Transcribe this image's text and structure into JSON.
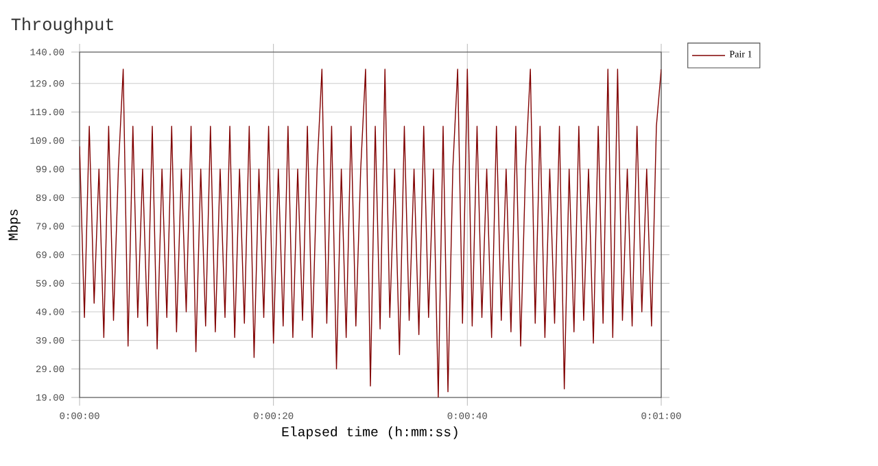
{
  "chart_data": {
    "type": "line",
    "title": "Throughput",
    "xlabel": "Elapsed time (h:mm:ss)",
    "ylabel": "Mbps",
    "xlim": [
      0,
      60
    ],
    "ylim": [
      19,
      140
    ],
    "xticks": [
      {
        "value": 0,
        "label": "0:00:00"
      },
      {
        "value": 20,
        "label": "0:00:20"
      },
      {
        "value": 40,
        "label": "0:00:40"
      },
      {
        "value": 60,
        "label": "0:01:00"
      }
    ],
    "yticks": [
      {
        "value": 19,
        "label": "19.00"
      },
      {
        "value": 29,
        "label": "29.00"
      },
      {
        "value": 39,
        "label": "39.00"
      },
      {
        "value": 49,
        "label": "49.00"
      },
      {
        "value": 59,
        "label": "59.00"
      },
      {
        "value": 69,
        "label": "69.00"
      },
      {
        "value": 79,
        "label": "79.00"
      },
      {
        "value": 89,
        "label": "89.00"
      },
      {
        "value": 99,
        "label": "99.00"
      },
      {
        "value": 109,
        "label": "109.00"
      },
      {
        "value": 119,
        "label": "119.00"
      },
      {
        "value": 129,
        "label": "129.00"
      },
      {
        "value": 140,
        "label": "140.00"
      }
    ],
    "grid": true,
    "legend": "right",
    "marker": "none",
    "line_style": "solid",
    "series": [
      {
        "name": "Pair 1",
        "color": "#800000",
        "x": [
          0,
          0.5,
          1,
          1.5,
          2,
          2.5,
          3,
          3.5,
          4,
          4.5,
          5,
          5.5,
          6,
          6.5,
          7,
          7.5,
          8,
          8.5,
          9,
          9.5,
          10,
          10.5,
          11,
          11.5,
          12,
          12.5,
          13,
          13.5,
          14,
          14.5,
          15,
          15.5,
          16,
          16.5,
          17,
          17.5,
          18,
          18.5,
          19,
          19.5,
          20,
          20.5,
          21,
          21.5,
          22,
          22.5,
          23,
          23.5,
          24,
          24.5,
          25,
          25.5,
          26,
          26.5,
          27,
          27.5,
          28,
          28.5,
          29,
          29.5,
          30,
          30.5,
          31,
          31.5,
          32,
          32.5,
          33,
          33.5,
          34,
          34.5,
          35,
          35.5,
          36,
          36.5,
          37,
          37.5,
          38,
          38.5,
          39,
          39.5,
          40,
          40.5,
          41,
          41.5,
          42,
          42.5,
          43,
          43.5,
          44,
          44.5,
          45,
          45.5,
          46,
          46.5,
          47,
          47.5,
          48,
          48.5,
          49,
          49.5,
          50,
          50.5,
          51,
          51.5,
          52,
          52.5,
          53,
          53.5,
          54,
          54.5,
          55,
          55.5,
          56,
          56.5,
          57,
          57.5,
          58,
          58.5,
          59,
          59.5,
          60
        ],
        "values": [
          107,
          47,
          114,
          52,
          99,
          40,
          114,
          46,
          99,
          134,
          37,
          114,
          47,
          99,
          44,
          114,
          36,
          99,
          47,
          114,
          42,
          99,
          49,
          114,
          35,
          99,
          44,
          114,
          42,
          99,
          47,
          114,
          40,
          99,
          45,
          114,
          33,
          99,
          47,
          114,
          38,
          99,
          44,
          114,
          40,
          99,
          46,
          114,
          40,
          99,
          134,
          45,
          114,
          29,
          99,
          40,
          114,
          44,
          99,
          134,
          23,
          114,
          43,
          134,
          47,
          99,
          34,
          114,
          46,
          99,
          41,
          114,
          47,
          99,
          19,
          114,
          21,
          99,
          134,
          45,
          134,
          44,
          114,
          47,
          99,
          40,
          114,
          46,
          99,
          42,
          114,
          37,
          99,
          134,
          45,
          114,
          40,
          99,
          45,
          114,
          22,
          99,
          42,
          114,
          46,
          99,
          38,
          114,
          45,
          134,
          40,
          134,
          46,
          99,
          44,
          114,
          49,
          99,
          44,
          114,
          134
        ]
      }
    ]
  }
}
